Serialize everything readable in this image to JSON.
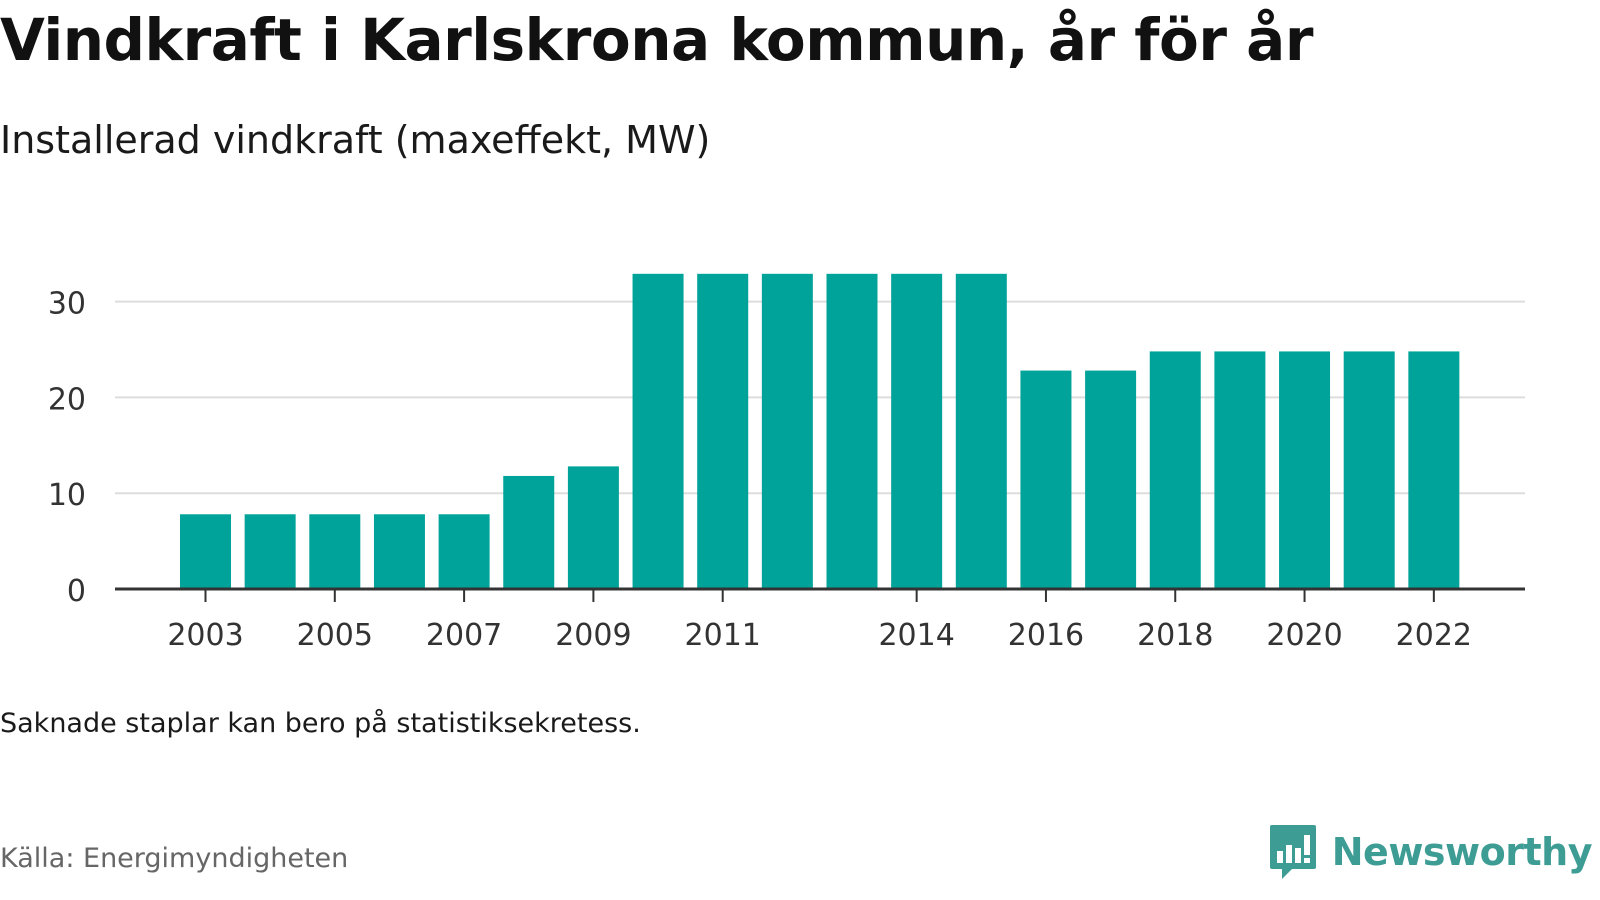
{
  "header": {
    "title": "Vindkraft i Karlskrona kommun, år för år",
    "subtitle": "Installerad vindkraft (maxeffekt, MW)"
  },
  "footer": {
    "note": "Saknade staplar kan bero på statistiksekretess.",
    "source": "Källa: Energimyndigheten",
    "brand": "Newsworthy",
    "brand_icon": "bar-chart-speech-bubble-icon"
  },
  "colors": {
    "bar": "#00a39a",
    "grid": "#dddddd",
    "axis": "#333333",
    "brand": "#3d9c94"
  },
  "chart_data": {
    "type": "bar",
    "title": "Vindkraft i Karlskrona kommun, år för år",
    "subtitle": "Installerad vindkraft (maxeffekt, MW)",
    "xlabel": "",
    "ylabel": "",
    "categories": [
      "2003",
      "2004",
      "2005",
      "2006",
      "2007",
      "2008",
      "2009",
      "2010",
      "2011",
      "2012",
      "2013",
      "2014",
      "2015",
      "2016",
      "2017",
      "2018",
      "2019",
      "2020",
      "2021",
      "2022"
    ],
    "values": [
      7.8,
      7.8,
      7.8,
      7.8,
      7.8,
      11.8,
      12.8,
      32.9,
      32.9,
      32.9,
      32.9,
      32.9,
      32.9,
      22.8,
      22.8,
      24.8,
      24.8,
      24.8,
      24.8,
      24.8
    ],
    "x_tick_labels": [
      "2003",
      "2005",
      "2007",
      "2009",
      "2011",
      "2014",
      "2016",
      "2018",
      "2020",
      "2022"
    ],
    "y_ticks": [
      0,
      10,
      20,
      30
    ],
    "ylim": [
      0,
      33
    ],
    "grid": true,
    "legend": "none"
  }
}
